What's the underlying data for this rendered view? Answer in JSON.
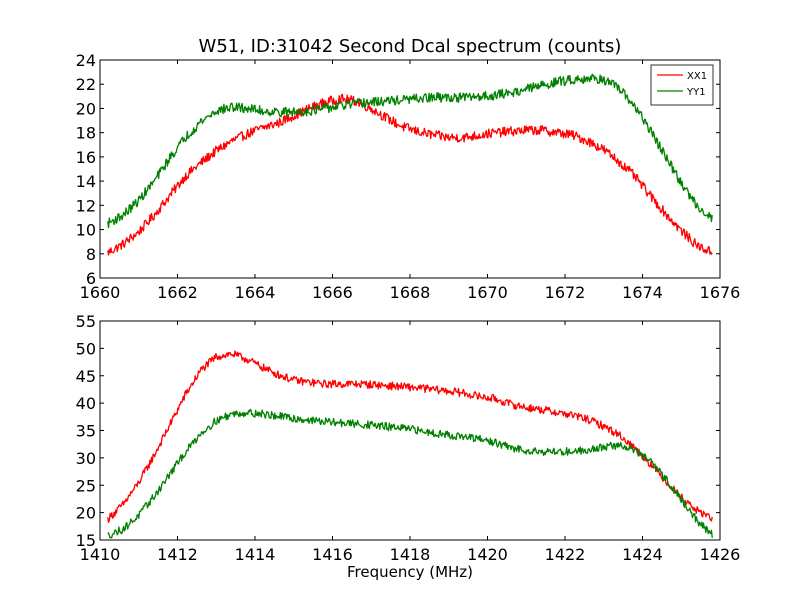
{
  "chart_data": [
    {
      "type": "line",
      "title": "W51, ID:31042 Second Dcal spectrum (counts)",
      "xlabel": "",
      "ylabel": "",
      "xlim": [
        1660,
        1676
      ],
      "ylim": [
        6,
        24
      ],
      "xticks": [
        "1660",
        "1662",
        "1664",
        "1666",
        "1668",
        "1670",
        "1672",
        "1674",
        "1676"
      ],
      "yticks": [
        "6",
        "8",
        "10",
        "12",
        "14",
        "16",
        "18",
        "20",
        "22",
        "24"
      ],
      "grid": false,
      "legend": "top-right",
      "series": [
        {
          "name": "XX1",
          "color": "#ff0000",
          "x": [
            1660.2,
            1660.6,
            1661.0,
            1661.4,
            1661.8,
            1662.2,
            1662.6,
            1663.0,
            1663.4,
            1663.8,
            1664.2,
            1664.6,
            1665.0,
            1665.4,
            1665.8,
            1666.2,
            1666.6,
            1667.0,
            1667.4,
            1667.8,
            1668.2,
            1668.6,
            1669.0,
            1669.4,
            1669.8,
            1670.2,
            1670.6,
            1671.0,
            1671.4,
            1671.8,
            1672.2,
            1672.6,
            1673.0,
            1673.4,
            1673.8,
            1674.2,
            1674.6,
            1675.0,
            1675.4,
            1675.8
          ],
          "y": [
            8.1,
            8.8,
            9.8,
            11.2,
            12.8,
            14.4,
            15.5,
            16.5,
            17.3,
            17.9,
            18.4,
            18.8,
            19.4,
            20.0,
            20.5,
            20.8,
            20.6,
            20.0,
            19.2,
            18.5,
            18.1,
            17.8,
            17.6,
            17.6,
            17.8,
            18.0,
            18.1,
            18.2,
            18.2,
            18.0,
            17.8,
            17.3,
            16.6,
            15.6,
            14.4,
            12.8,
            11.3,
            9.9,
            8.7,
            8.1
          ]
        },
        {
          "name": "YY1",
          "color": "#008000",
          "x": [
            1660.2,
            1660.6,
            1661.0,
            1661.4,
            1661.8,
            1662.2,
            1662.6,
            1663.0,
            1663.4,
            1663.8,
            1664.2,
            1664.6,
            1665.0,
            1665.4,
            1665.8,
            1666.2,
            1666.6,
            1667.0,
            1667.4,
            1667.8,
            1668.2,
            1668.6,
            1669.0,
            1669.4,
            1669.8,
            1670.2,
            1670.6,
            1671.0,
            1671.4,
            1671.8,
            1672.2,
            1672.6,
            1673.0,
            1673.4,
            1673.8,
            1674.2,
            1674.6,
            1675.0,
            1675.4,
            1675.8
          ],
          "y": [
            10.5,
            11.2,
            12.4,
            14.0,
            15.9,
            17.6,
            18.9,
            19.8,
            20.1,
            20.0,
            19.8,
            19.7,
            19.7,
            19.8,
            20.0,
            20.2,
            20.4,
            20.5,
            20.6,
            20.7,
            20.8,
            20.9,
            20.9,
            20.9,
            21.0,
            21.1,
            21.3,
            21.6,
            21.9,
            22.2,
            22.4,
            22.5,
            22.4,
            21.6,
            20.2,
            18.2,
            16.0,
            13.8,
            12.0,
            10.9
          ]
        }
      ]
    },
    {
      "type": "line",
      "title": "",
      "xlabel": "Frequency (MHz)",
      "ylabel": "",
      "xlim": [
        1410,
        1426
      ],
      "ylim": [
        15,
        55
      ],
      "xticks": [
        "1410",
        "1412",
        "1414",
        "1416",
        "1418",
        "1420",
        "1422",
        "1424",
        "1426"
      ],
      "yticks": [
        "15",
        "20",
        "25",
        "30",
        "35",
        "40",
        "45",
        "50",
        "55"
      ],
      "grid": false,
      "legend": "none",
      "series": [
        {
          "name": "",
          "color": "#ff0000",
          "x": [
            1410.2,
            1410.6,
            1411.0,
            1411.4,
            1411.8,
            1412.2,
            1412.6,
            1413.0,
            1413.4,
            1413.8,
            1414.2,
            1414.6,
            1415.0,
            1415.4,
            1415.8,
            1416.2,
            1416.6,
            1417.0,
            1417.4,
            1417.8,
            1418.2,
            1418.6,
            1419.0,
            1419.4,
            1419.8,
            1420.2,
            1420.6,
            1421.0,
            1421.4,
            1421.8,
            1422.2,
            1422.6,
            1423.0,
            1423.4,
            1423.8,
            1424.2,
            1424.6,
            1425.0,
            1425.4,
            1425.8
          ],
          "y": [
            18.8,
            21.5,
            25.5,
            30.5,
            36.0,
            41.5,
            46.0,
            48.5,
            49.0,
            48.0,
            46.5,
            45.2,
            44.2,
            43.8,
            43.5,
            43.5,
            43.5,
            43.4,
            43.2,
            43.0,
            42.8,
            42.5,
            42.2,
            41.8,
            41.2,
            40.8,
            39.8,
            39.2,
            38.8,
            38.3,
            37.8,
            37.0,
            35.8,
            34.2,
            31.8,
            29.0,
            25.8,
            22.8,
            20.4,
            19.0
          ]
        },
        {
          "name": "",
          "color": "#008000",
          "x": [
            1410.2,
            1410.6,
            1411.0,
            1411.4,
            1411.8,
            1412.2,
            1412.6,
            1413.0,
            1413.4,
            1413.8,
            1414.2,
            1414.6,
            1415.0,
            1415.4,
            1415.8,
            1416.2,
            1416.6,
            1417.0,
            1417.4,
            1417.8,
            1418.2,
            1418.6,
            1419.0,
            1419.4,
            1419.8,
            1420.2,
            1420.6,
            1421.0,
            1421.4,
            1421.8,
            1422.2,
            1422.6,
            1423.0,
            1423.4,
            1423.8,
            1424.2,
            1424.6,
            1425.0,
            1425.4,
            1425.8
          ],
          "y": [
            15.8,
            17.0,
            19.5,
            23.0,
            27.0,
            31.0,
            34.5,
            36.8,
            38.0,
            38.3,
            38.0,
            37.6,
            37.2,
            36.9,
            36.6,
            36.4,
            36.2,
            36.0,
            35.7,
            35.4,
            35.0,
            34.6,
            34.2,
            33.8,
            33.4,
            32.8,
            31.8,
            31.4,
            31.2,
            31.1,
            31.2,
            31.5,
            32.0,
            32.3,
            31.5,
            29.3,
            26.2,
            22.4,
            18.6,
            16.0
          ]
        }
      ]
    }
  ]
}
